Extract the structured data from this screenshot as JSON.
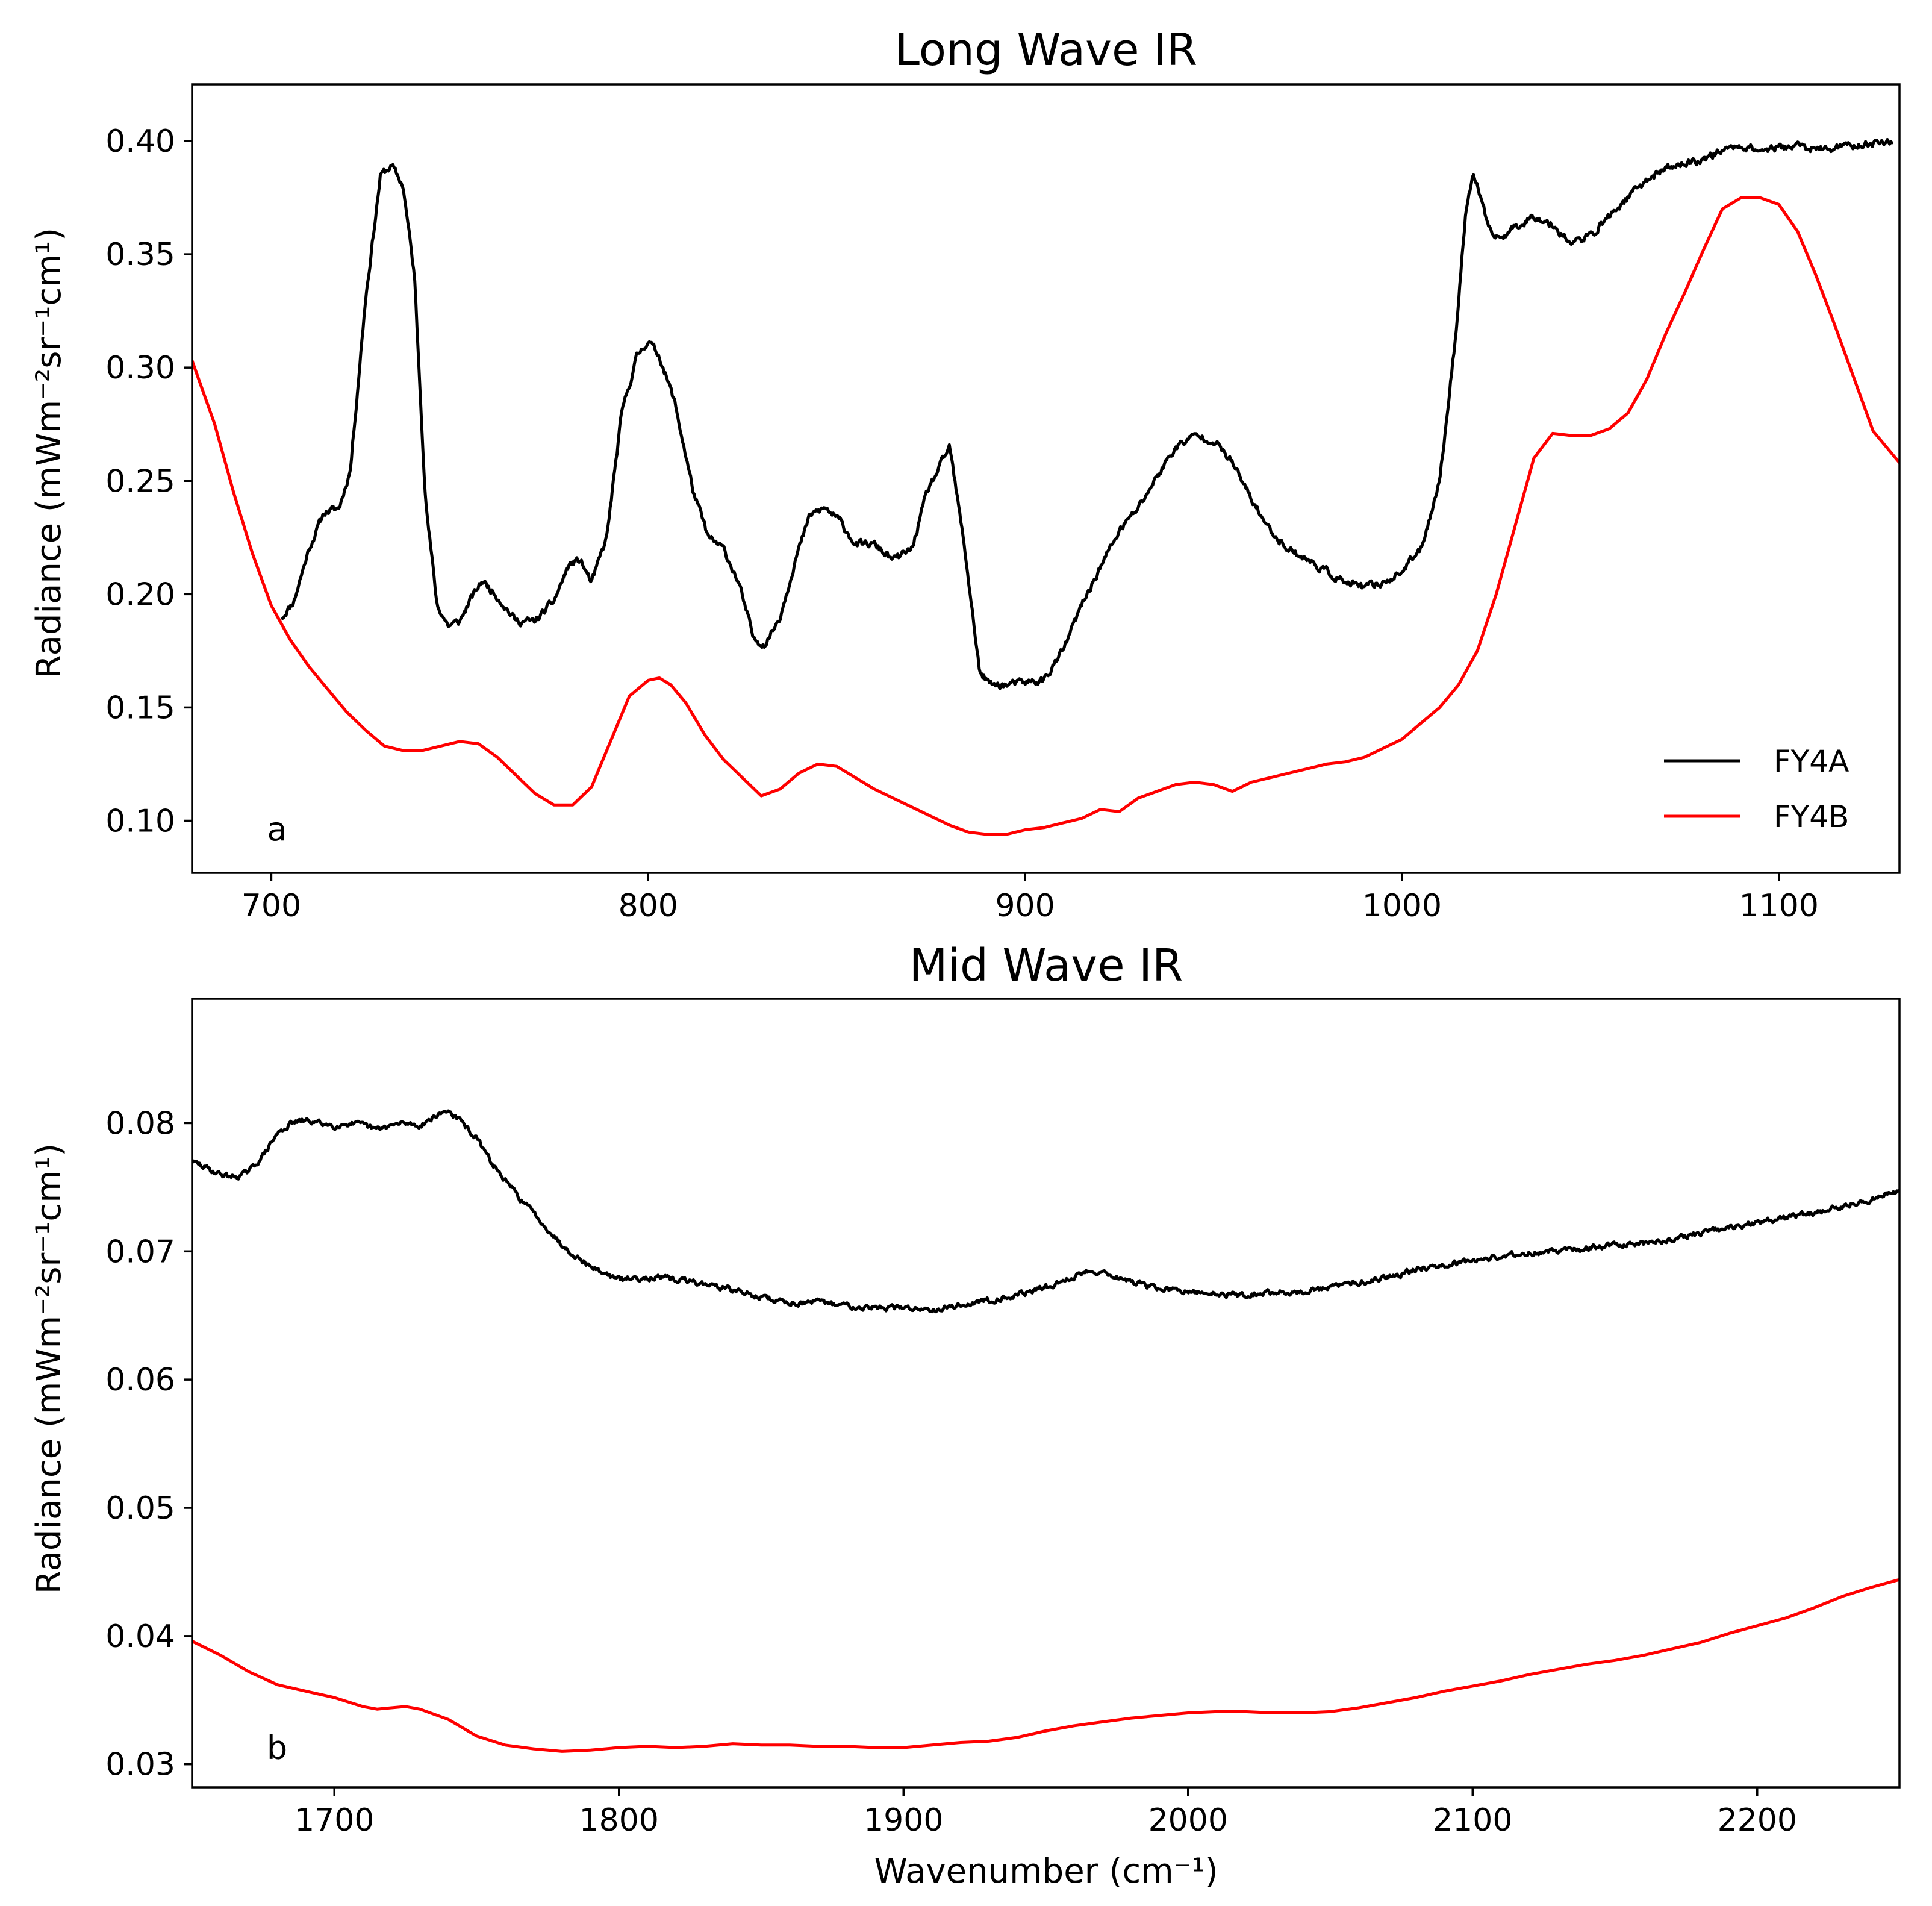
{
  "colors": {
    "FY4A": "#000000",
    "FY4B": "#ff0000"
  },
  "chart_data": [
    {
      "type": "line",
      "title": "Long Wave IR",
      "panel_label": "a",
      "xlabel": "",
      "ylabel": "Radiance (mWm⁻²sr⁻¹cm¹)",
      "xlim": [
        679,
        1132
      ],
      "ylim": [
        0.077,
        0.425
      ],
      "xticks": [
        700,
        800,
        900,
        1000,
        1100
      ],
      "xtick_labels": [
        "700",
        "800",
        "900",
        "1000",
        "1100"
      ],
      "yticks": [
        0.1,
        0.15,
        0.2,
        0.25,
        0.3,
        0.35,
        0.4
      ],
      "ytick_labels": [
        "0.10",
        "0.15",
        "0.20",
        "0.25",
        "0.30",
        "0.35",
        "0.40"
      ],
      "legend": {
        "placement": "lower-right",
        "entries": [
          "FY4A",
          "FY4B"
        ]
      },
      "series": [
        {
          "name": "FY4A",
          "noise": 0.003,
          "x": [
            703,
            706,
            710,
            714,
            718,
            721,
            725,
            729,
            732,
            735,
            738,
            741,
            744,
            747,
            750,
            753,
            756,
            760,
            765,
            770,
            775,
            779,
            782,
            785,
            789,
            793,
            797,
            800,
            803,
            807,
            812,
            816,
            820,
            824,
            828,
            831,
            835,
            839,
            843,
            847,
            851,
            855,
            860,
            865,
            870,
            874,
            877,
            880,
            884,
            888,
            891,
            895,
            900,
            905,
            910,
            915,
            920,
            925,
            930,
            935,
            940,
            945,
            950,
            955,
            960,
            965,
            970,
            975,
            980,
            985,
            990,
            995,
            1000,
            1005,
            1010,
            1014,
            1017,
            1019,
            1021,
            1023,
            1026,
            1030,
            1035,
            1040,
            1045,
            1050,
            1055,
            1060,
            1065,
            1070,
            1075,
            1080,
            1085,
            1090,
            1095,
            1100,
            1105,
            1110,
            1115,
            1120,
            1125,
            1130
          ],
          "y": [
            0.19,
            0.197,
            0.22,
            0.236,
            0.238,
            0.255,
            0.33,
            0.385,
            0.389,
            0.38,
            0.34,
            0.24,
            0.195,
            0.186,
            0.188,
            0.198,
            0.206,
            0.199,
            0.188,
            0.188,
            0.197,
            0.213,
            0.215,
            0.205,
            0.225,
            0.28,
            0.305,
            0.312,
            0.305,
            0.285,
            0.245,
            0.225,
            0.22,
            0.205,
            0.18,
            0.178,
            0.19,
            0.215,
            0.235,
            0.238,
            0.232,
            0.222,
            0.222,
            0.215,
            0.22,
            0.245,
            0.255,
            0.265,
            0.22,
            0.165,
            0.16,
            0.16,
            0.161,
            0.162,
            0.175,
            0.195,
            0.212,
            0.228,
            0.238,
            0.252,
            0.265,
            0.27,
            0.268,
            0.258,
            0.242,
            0.228,
            0.22,
            0.215,
            0.21,
            0.205,
            0.203,
            0.205,
            0.21,
            0.22,
            0.25,
            0.31,
            0.37,
            0.385,
            0.375,
            0.36,
            0.357,
            0.362,
            0.367,
            0.363,
            0.355,
            0.358,
            0.367,
            0.375,
            0.383,
            0.388,
            0.39,
            0.392,
            0.396,
            0.398,
            0.396,
            0.397,
            0.398,
            0.396,
            0.397,
            0.398,
            0.399,
            0.4
          ]
        },
        {
          "name": "FY4B",
          "noise": 0,
          "x": [
            679,
            685,
            690,
            695,
            700,
            705,
            710,
            715,
            720,
            725,
            730,
            735,
            740,
            745,
            750,
            755,
            760,
            765,
            770,
            775,
            780,
            785,
            790,
            795,
            800,
            803,
            806,
            810,
            815,
            820,
            825,
            830,
            835,
            840,
            845,
            850,
            855,
            860,
            865,
            870,
            875,
            880,
            885,
            890,
            895,
            900,
            905,
            910,
            915,
            920,
            925,
            930,
            935,
            940,
            945,
            950,
            955,
            960,
            965,
            970,
            975,
            980,
            985,
            990,
            995,
            1000,
            1005,
            1010,
            1015,
            1020,
            1025,
            1030,
            1035,
            1040,
            1045,
            1050,
            1055,
            1060,
            1065,
            1070,
            1075,
            1080,
            1085,
            1090,
            1095,
            1100,
            1105,
            1110,
            1115,
            1120,
            1125,
            1132
          ],
          "y": [
            0.303,
            0.275,
            0.245,
            0.218,
            0.195,
            0.18,
            0.168,
            0.158,
            0.148,
            0.14,
            0.133,
            0.131,
            0.131,
            0.133,
            0.135,
            0.134,
            0.128,
            0.12,
            0.112,
            0.107,
            0.107,
            0.115,
            0.135,
            0.155,
            0.162,
            0.163,
            0.16,
            0.152,
            0.138,
            0.127,
            0.119,
            0.111,
            0.114,
            0.121,
            0.125,
            0.124,
            0.119,
            0.114,
            0.11,
            0.106,
            0.102,
            0.098,
            0.095,
            0.094,
            0.094,
            0.096,
            0.097,
            0.099,
            0.101,
            0.105,
            0.104,
            0.11,
            0.113,
            0.116,
            0.117,
            0.116,
            0.113,
            0.117,
            0.119,
            0.121,
            0.123,
            0.125,
            0.126,
            0.128,
            0.132,
            0.136,
            0.143,
            0.15,
            0.16,
            0.175,
            0.2,
            0.23,
            0.26,
            0.271,
            0.27,
            0.27,
            0.273,
            0.28,
            0.295,
            0.315,
            0.333,
            0.352,
            0.37,
            0.375,
            0.375,
            0.372,
            0.36,
            0.34,
            0.318,
            0.295,
            0.272,
            0.258
          ]
        }
      ]
    },
    {
      "type": "line",
      "title": "Mid Wave IR",
      "panel_label": "b",
      "xlabel": "Wavenumber (cm⁻¹)",
      "ylabel": "Radiance (mWm⁻²sr⁻¹cm¹)",
      "xlim": [
        1650,
        2250
      ],
      "ylim": [
        0.0282,
        0.0897
      ],
      "xticks": [
        1700,
        1800,
        1900,
        2000,
        2100,
        2200
      ],
      "xtick_labels": [
        "1700",
        "1800",
        "1900",
        "2000",
        "2100",
        "2200"
      ],
      "yticks": [
        0.03,
        0.04,
        0.05,
        0.06,
        0.07,
        0.08
      ],
      "ytick_labels": [
        "0.03",
        "0.04",
        "0.05",
        "0.06",
        "0.07",
        "0.08"
      ],
      "series": [
        {
          "name": "FY4A",
          "noise": 0.0004,
          "x": [
            1650,
            1655,
            1660,
            1665,
            1670,
            1675,
            1680,
            1685,
            1690,
            1695,
            1700,
            1705,
            1710,
            1715,
            1720,
            1725,
            1730,
            1735,
            1740,
            1745,
            1750,
            1755,
            1760,
            1765,
            1770,
            1780,
            1790,
            1800,
            1810,
            1820,
            1830,
            1840,
            1850,
            1860,
            1870,
            1880,
            1890,
            1900,
            1910,
            1920,
            1930,
            1940,
            1950,
            1960,
            1965,
            1970,
            1980,
            1990,
            2000,
            2010,
            2020,
            2030,
            2040,
            2050,
            2060,
            2070,
            2080,
            2090,
            2100,
            2110,
            2120,
            2130,
            2140,
            2150,
            2160,
            2170,
            2180,
            2190,
            2200,
            2210,
            2220,
            2230,
            2240,
            2250
          ],
          "y": [
            0.077,
            0.0765,
            0.076,
            0.0758,
            0.0762,
            0.0775,
            0.0792,
            0.08,
            0.0802,
            0.08,
            0.0798,
            0.08,
            0.0798,
            0.0795,
            0.0798,
            0.08,
            0.0798,
            0.0805,
            0.081,
            0.08,
            0.0788,
            0.077,
            0.0755,
            0.0742,
            0.073,
            0.0705,
            0.0688,
            0.0678,
            0.068,
            0.0678,
            0.0675,
            0.067,
            0.0664,
            0.066,
            0.066,
            0.0658,
            0.0656,
            0.0656,
            0.0655,
            0.0658,
            0.0662,
            0.0666,
            0.0672,
            0.068,
            0.0685,
            0.0684,
            0.0676,
            0.0671,
            0.0668,
            0.0667,
            0.0666,
            0.0668,
            0.0668,
            0.0672,
            0.0676,
            0.068,
            0.0686,
            0.069,
            0.0693,
            0.0696,
            0.0699,
            0.07,
            0.0702,
            0.0705,
            0.0706,
            0.071,
            0.0714,
            0.0718,
            0.0722,
            0.0726,
            0.073,
            0.0735,
            0.074,
            0.0748
          ]
        },
        {
          "name": "FY4B",
          "noise": 0,
          "x": [
            1650,
            1660,
            1670,
            1680,
            1690,
            1700,
            1710,
            1715,
            1720,
            1725,
            1730,
            1740,
            1750,
            1760,
            1770,
            1780,
            1790,
            1800,
            1810,
            1820,
            1830,
            1840,
            1850,
            1860,
            1870,
            1880,
            1890,
            1900,
            1910,
            1920,
            1930,
            1940,
            1950,
            1960,
            1970,
            1980,
            1990,
            2000,
            2010,
            2020,
            2030,
            2040,
            2050,
            2060,
            2070,
            2080,
            2090,
            2100,
            2110,
            2120,
            2130,
            2140,
            2150,
            2160,
            2170,
            2180,
            2190,
            2200,
            2210,
            2220,
            2230,
            2240,
            2250
          ],
          "y": [
            0.0396,
            0.0385,
            0.0372,
            0.0362,
            0.0357,
            0.0352,
            0.0345,
            0.0343,
            0.0344,
            0.0345,
            0.0343,
            0.0335,
            0.0322,
            0.0315,
            0.0312,
            0.031,
            0.0311,
            0.0313,
            0.0314,
            0.0313,
            0.0314,
            0.0316,
            0.0315,
            0.0315,
            0.0314,
            0.0314,
            0.0313,
            0.0313,
            0.0315,
            0.0317,
            0.0318,
            0.0321,
            0.0326,
            0.033,
            0.0333,
            0.0336,
            0.0338,
            0.034,
            0.0341,
            0.0341,
            0.034,
            0.034,
            0.0341,
            0.0344,
            0.0348,
            0.0352,
            0.0357,
            0.0361,
            0.0365,
            0.037,
            0.0374,
            0.0378,
            0.0381,
            0.0385,
            0.039,
            0.0395,
            0.0402,
            0.0408,
            0.0414,
            0.0422,
            0.0431,
            0.0438,
            0.0444
          ]
        }
      ]
    }
  ]
}
